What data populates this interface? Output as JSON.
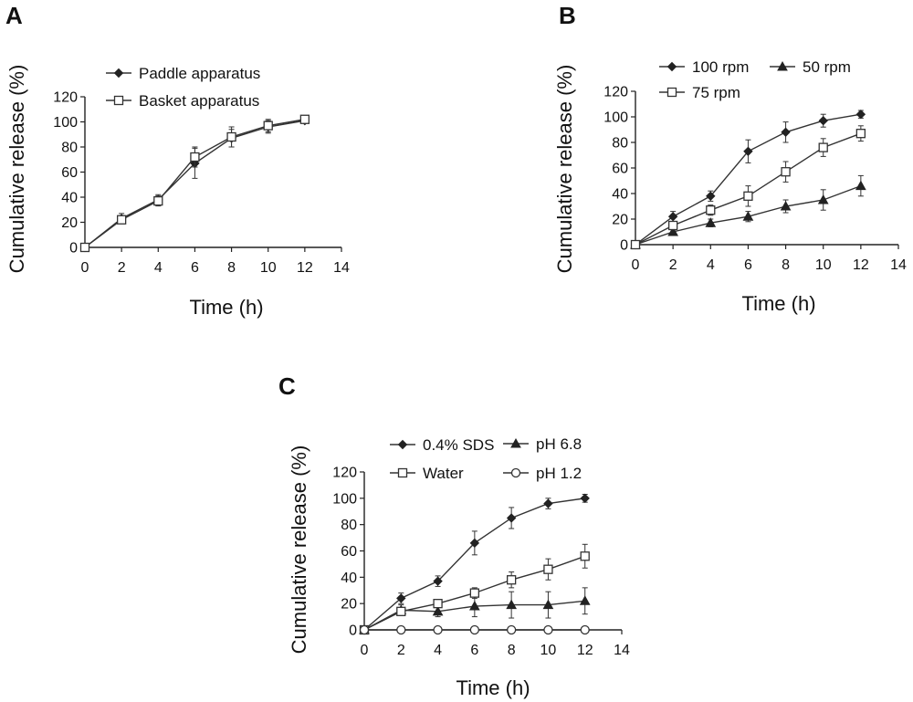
{
  "chart_data": [
    {
      "panel": "A",
      "type": "line",
      "xlabel": "Time (h)",
      "ylabel": "Cumulative release (%)",
      "xlim": [
        0,
        14
      ],
      "ylim": [
        0,
        120
      ],
      "xticks": [
        0,
        2,
        4,
        6,
        8,
        10,
        12,
        14
      ],
      "yticks": [
        0,
        20,
        40,
        60,
        80,
        100,
        120
      ],
      "grid": false,
      "legend_position": "top-left",
      "x": [
        0,
        2,
        4,
        6,
        8,
        10,
        12
      ],
      "series": [
        {
          "name": "Paddle apparatus",
          "marker": "filled-diamond",
          "values": [
            0,
            23,
            38,
            67,
            87,
            96,
            101
          ],
          "errors": [
            0,
            4,
            4,
            12,
            7,
            5,
            2
          ]
        },
        {
          "name": "Basket apparatus",
          "marker": "open-square",
          "values": [
            0,
            22,
            37,
            72,
            88,
            97,
            102
          ],
          "errors": [
            0,
            3,
            4,
            8,
            8,
            5,
            3
          ]
        }
      ]
    },
    {
      "panel": "B",
      "type": "line",
      "xlabel": "Time (h)",
      "ylabel": "Cumulative release (%)",
      "xlim": [
        0,
        14
      ],
      "ylim": [
        0,
        120
      ],
      "xticks": [
        0,
        2,
        4,
        6,
        8,
        10,
        12,
        14
      ],
      "yticks": [
        0,
        20,
        40,
        60,
        80,
        100,
        120
      ],
      "grid": false,
      "legend_position": "top",
      "x": [
        0,
        2,
        4,
        6,
        8,
        10,
        12
      ],
      "series": [
        {
          "name": "100 rpm",
          "marker": "filled-diamond",
          "values": [
            0,
            22,
            38,
            73,
            88,
            97,
            102
          ],
          "errors": [
            0,
            4,
            4,
            9,
            8,
            5,
            3
          ]
        },
        {
          "name": "50 rpm",
          "marker": "filled-triangle",
          "values": [
            0,
            10,
            17,
            22,
            30,
            35,
            46
          ],
          "errors": [
            0,
            2,
            3,
            4,
            5,
            8,
            8
          ]
        },
        {
          "name": "75 rpm",
          "marker": "open-square",
          "values": [
            0,
            15,
            27,
            38,
            57,
            76,
            87
          ],
          "errors": [
            0,
            3,
            4,
            8,
            8,
            7,
            6
          ]
        }
      ]
    },
    {
      "panel": "C",
      "type": "line",
      "xlabel": "Time (h)",
      "ylabel": "Cumulative release (%)",
      "xlim": [
        0,
        14
      ],
      "ylim": [
        0,
        120
      ],
      "xticks": [
        0,
        2,
        4,
        6,
        8,
        10,
        12,
        14
      ],
      "yticks": [
        0,
        20,
        40,
        60,
        80,
        100,
        120
      ],
      "grid": false,
      "legend_position": "top",
      "x": [
        0,
        2,
        4,
        6,
        8,
        10,
        12
      ],
      "series": [
        {
          "name": "0.4% SDS",
          "marker": "filled-diamond",
          "values": [
            0,
            24,
            37,
            66,
            85,
            96,
            100
          ],
          "errors": [
            0,
            4,
            4,
            9,
            8,
            4,
            3
          ]
        },
        {
          "name": "pH 6.8",
          "marker": "filled-triangle",
          "values": [
            0,
            15,
            14,
            18,
            19,
            19,
            22
          ],
          "errors": [
            0,
            4,
            4,
            8,
            10,
            10,
            10
          ]
        },
        {
          "name": "Water",
          "marker": "open-square",
          "values": [
            0,
            14,
            20,
            28,
            38,
            46,
            56
          ],
          "errors": [
            0,
            3,
            3,
            4,
            6,
            8,
            9
          ]
        },
        {
          "name": "pH 1.2",
          "marker": "open-circle",
          "values": [
            0,
            0,
            0,
            0,
            0,
            0,
            0
          ],
          "errors": [
            0,
            0,
            0,
            0,
            0,
            0,
            0
          ]
        }
      ]
    }
  ]
}
